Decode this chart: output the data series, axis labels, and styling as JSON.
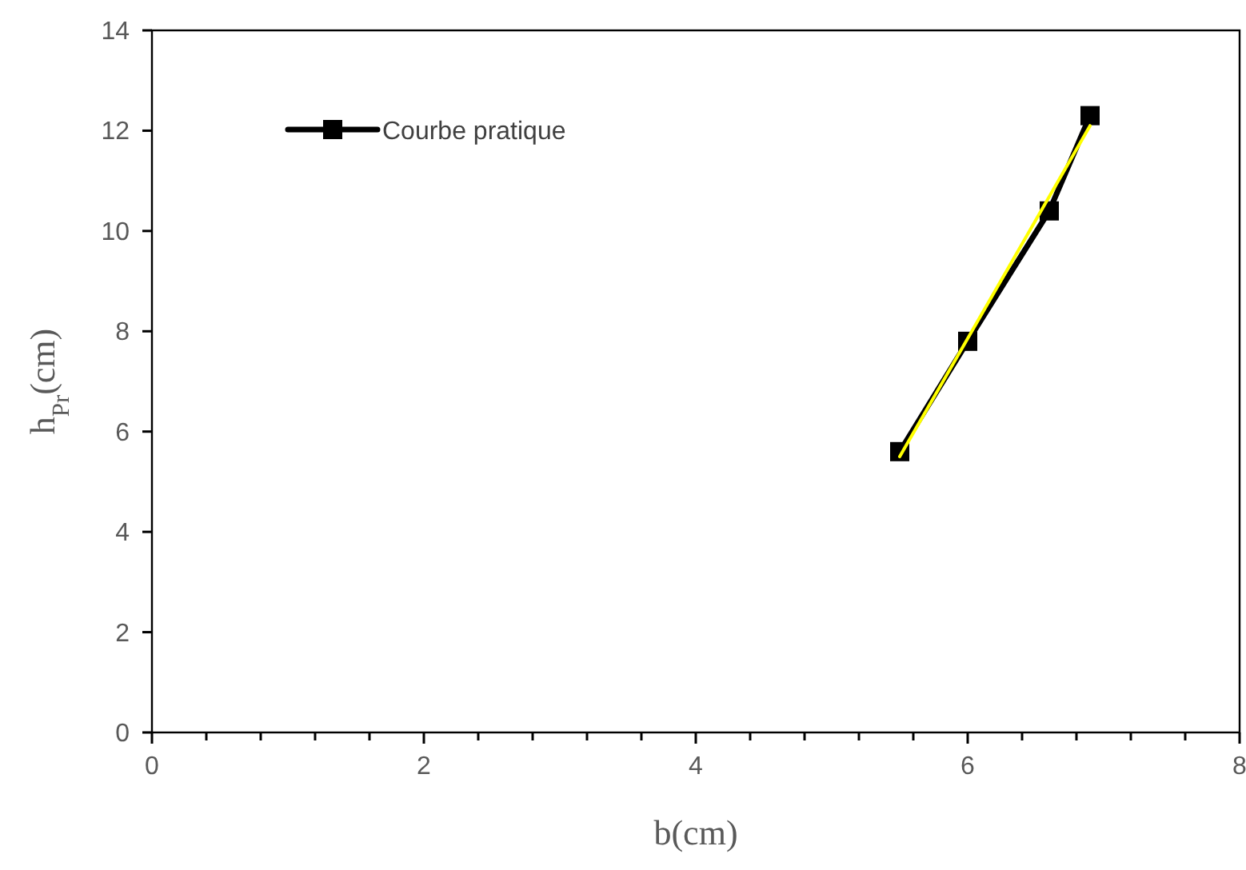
{
  "chart_data": {
    "type": "line",
    "xlabel": "b(cm)",
    "ylabel": "h$_{Pr}$(cm)",
    "xlim": [
      0,
      8
    ],
    "xticks": [
      0,
      {
        "value": 0.4,
        "label": null
      },
      {
        "value": 0.8,
        "label": null
      },
      {
        "value": 1.2,
        "label": null
      },
      {
        "value": 1.6,
        "label": null
      },
      2,
      {
        "value": 2.4,
        "label": null
      },
      {
        "value": 2.8,
        "label": null
      },
      {
        "value": 3.2,
        "label": null
      },
      {
        "value": 3.6,
        "label": null
      },
      4,
      {
        "value": 4.4,
        "label": null
      },
      {
        "value": 4.8,
        "label": null
      },
      {
        "value": 5.2,
        "label": null
      },
      {
        "value": 5.6,
        "label": null
      },
      6,
      {
        "value": 6.4,
        "label": null
      },
      {
        "value": 6.8,
        "label": null
      },
      {
        "value": 7.2,
        "label": null
      },
      {
        "value": 7.6,
        "label": null
      },
      8
    ],
    "ylim": [
      0,
      14
    ],
    "yticks": [
      0,
      2,
      4,
      6,
      8,
      10,
      12,
      14
    ],
    "grid": false,
    "legend": "top left",
    "marker": "square",
    "line_style": "solid",
    "series": [
      {
        "name": "Courbe pratique",
        "color": "#000000",
        "x": [
          5.5,
          6,
          6.6,
          6.9
        ],
        "values": [
          5.6,
          7.8,
          10.4,
          12.3
        ]
      },
      {
        "type": "line",
        "color": "#ffff00",
        "marker": "none",
        "x": [
          5.5,
          6.9
        ],
        "values": [
          5.5,
          12.1
        ]
      }
    ]
  }
}
